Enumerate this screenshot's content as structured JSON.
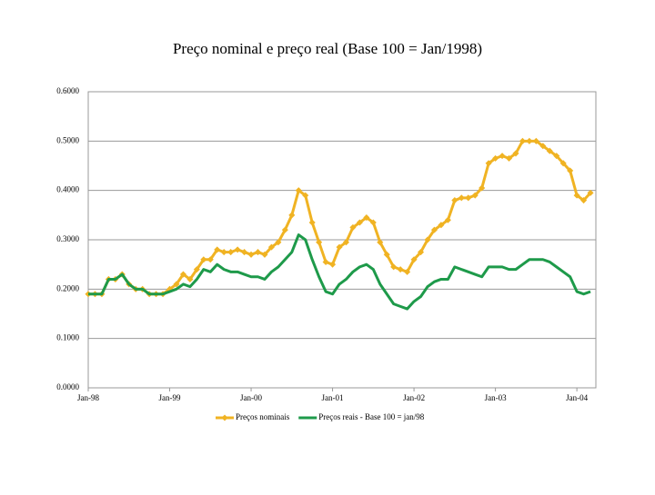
{
  "chart_data": {
    "type": "line",
    "title": "Preço nominal e preço real (Base 100 = Jan/1998)",
    "categories": [
      "Jan-98",
      null,
      null,
      null,
      null,
      null,
      null,
      null,
      null,
      null,
      null,
      null,
      "Jan-99",
      null,
      null,
      null,
      null,
      null,
      null,
      null,
      null,
      null,
      null,
      null,
      "Jan-00",
      null,
      null,
      null,
      null,
      null,
      null,
      null,
      null,
      null,
      null,
      null,
      "Jan-01",
      null,
      null,
      null,
      null,
      null,
      null,
      null,
      null,
      null,
      null,
      null,
      "Jan-02",
      null,
      null,
      null,
      null,
      null,
      null,
      null,
      null,
      null,
      null,
      null,
      "Jan-03",
      null,
      null,
      null,
      null,
      null,
      null,
      null,
      null,
      null,
      null,
      null,
      "Jan-04",
      null,
      null
    ],
    "series": [
      {
        "name": "Preços nominais",
        "color": "#f0b323",
        "marker": true,
        "values": [
          0.19,
          0.19,
          0.19,
          0.22,
          0.22,
          0.23,
          0.21,
          0.2,
          0.2,
          0.19,
          0.19,
          0.19,
          0.2,
          0.21,
          0.23,
          0.22,
          0.24,
          0.26,
          0.26,
          0.28,
          0.275,
          0.275,
          0.28,
          0.275,
          0.27,
          0.275,
          0.27,
          0.285,
          0.295,
          0.32,
          0.35,
          0.4,
          0.39,
          0.335,
          0.295,
          0.255,
          0.25,
          0.285,
          0.295,
          0.325,
          0.335,
          0.345,
          0.335,
          0.295,
          0.27,
          0.245,
          0.24,
          0.235,
          0.26,
          0.275,
          0.3,
          0.32,
          0.33,
          0.34,
          0.38,
          0.385,
          0.385,
          0.39,
          0.405,
          0.455,
          0.465,
          0.47,
          0.465,
          0.475,
          0.5,
          0.5,
          0.5,
          0.49,
          0.48,
          0.47,
          0.455,
          0.44,
          0.39,
          0.38,
          0.395
        ]
      },
      {
        "name": "Preços reais - Base 100 = jan/98",
        "color": "#1e9a4a",
        "marker": false,
        "values": [
          0.19,
          0.19,
          0.19,
          0.22,
          0.22,
          0.23,
          0.21,
          0.2,
          0.2,
          0.19,
          0.19,
          0.19,
          0.195,
          0.2,
          0.21,
          0.205,
          0.22,
          0.24,
          0.235,
          0.25,
          0.24,
          0.235,
          0.235,
          0.23,
          0.225,
          0.225,
          0.22,
          0.235,
          0.245,
          0.26,
          0.275,
          0.31,
          0.3,
          0.26,
          0.225,
          0.195,
          0.19,
          0.21,
          0.22,
          0.235,
          0.245,
          0.25,
          0.24,
          0.21,
          0.19,
          0.17,
          0.165,
          0.16,
          0.175,
          0.185,
          0.205,
          0.215,
          0.22,
          0.22,
          0.245,
          0.24,
          0.235,
          0.23,
          0.225,
          0.245,
          0.245,
          0.245,
          0.24,
          0.24,
          0.25,
          0.26,
          0.26,
          0.26,
          0.255,
          0.245,
          0.235,
          0.225,
          0.195,
          0.19,
          0.195
        ]
      }
    ],
    "ylim": [
      0,
      0.6
    ],
    "yticks": [
      {
        "value": 0,
        "label": "0.0000"
      },
      {
        "value": 0.1,
        "label": "0.1000"
      },
      {
        "value": 0.2,
        "label": "0.2000"
      },
      {
        "value": 0.3,
        "label": "0.3000"
      },
      {
        "value": 0.4,
        "label": "0.4000"
      },
      {
        "value": 0.5,
        "label": "0.5000"
      },
      {
        "value": 0.6,
        "label": "0.6000"
      }
    ],
    "grid": true,
    "legend": "bottom"
  }
}
